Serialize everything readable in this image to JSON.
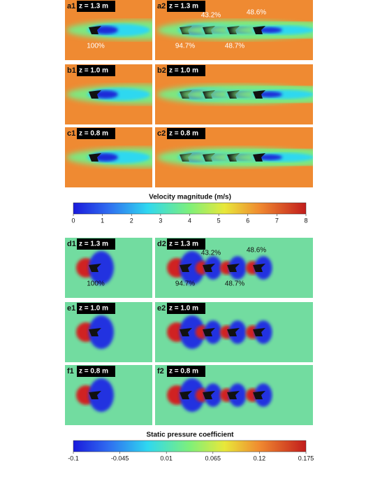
{
  "figures": [
    {
      "kind": "velocity",
      "panels": [
        {
          "id": "a1",
          "height": "z = 1.3 m",
          "annotations": [
            "100%"
          ]
        },
        {
          "id": "a2",
          "height": "z = 1.3 m",
          "annotations": [
            "43.2%",
            "48.6%",
            "94.7%",
            "48.7%"
          ]
        },
        {
          "id": "b1",
          "height": "z = 1.0 m",
          "annotations": []
        },
        {
          "id": "b2",
          "height": "z = 1.0 m",
          "annotations": []
        },
        {
          "id": "c1",
          "height": "z = 0.8 m",
          "annotations": []
        },
        {
          "id": "c2",
          "height": "z = 0.8 m",
          "annotations": []
        }
      ],
      "colorbar": {
        "title": "Velocity magnitude (m/s)",
        "range": [
          0,
          8
        ],
        "ticks": [
          0,
          1,
          2,
          3,
          4,
          5,
          6,
          7,
          8
        ]
      }
    },
    {
      "kind": "pressure",
      "panels": [
        {
          "id": "d1",
          "height": "z = 1.3 m",
          "annotations": [
            "100%"
          ]
        },
        {
          "id": "d2",
          "height": "z = 1.3 m",
          "annotations": [
            "43.2%",
            "48.6%",
            "94.7%",
            "48.7%"
          ]
        },
        {
          "id": "e1",
          "height": "z = 1.0 m",
          "annotations": []
        },
        {
          "id": "e2",
          "height": "z = 1.0 m",
          "annotations": []
        },
        {
          "id": "f1",
          "height": "z = 0.8 m",
          "annotations": []
        },
        {
          "id": "f2",
          "height": "z = 0.8 m",
          "annotations": []
        }
      ],
      "colorbar": {
        "title": "Static pressure coefficient",
        "range": [
          -0.1,
          0.175
        ],
        "ticks": [
          -0.1,
          -0.045,
          0.01,
          0.065,
          0.12,
          0.175
        ]
      }
    }
  ]
}
